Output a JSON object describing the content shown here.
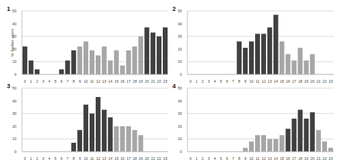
{
  "chart_data": [
    {
      "type": "bar",
      "title": "1",
      "y_label": "% Twitter users",
      "categories": [
        "0",
        "1",
        "2",
        "3",
        "4",
        "5",
        "6",
        "7",
        "8",
        "9",
        "10",
        "11",
        "12",
        "13",
        "14",
        "15",
        "16",
        "17",
        "18",
        "19",
        "20",
        "21",
        "22",
        "23"
      ],
      "values": [
        22,
        11,
        4,
        0,
        0,
        0,
        4,
        11,
        19,
        22,
        26,
        19,
        15,
        22,
        11,
        19,
        7,
        19,
        22,
        30,
        37,
        33,
        30,
        37
      ],
      "colors": [
        "#404040",
        "#404040",
        "#404040",
        "#404040",
        "#404040",
        "#404040",
        "#404040",
        "#404040",
        "#404040",
        "#a6a6a6",
        "#a6a6a6",
        "#a6a6a6",
        "#a6a6a6",
        "#a6a6a6",
        "#a6a6a6",
        "#a6a6a6",
        "#a6a6a6",
        "#a6a6a6",
        "#a6a6a6",
        "#a6a6a6",
        "#404040",
        "#404040",
        "#404040",
        "#404040"
      ],
      "ylim": [
        0,
        50
      ],
      "yticks": [
        0,
        10,
        20,
        30,
        40,
        50
      ],
      "grid": true
    },
    {
      "type": "bar",
      "title": "2",
      "categories": [
        "0",
        "1",
        "2",
        "3",
        "4",
        "5",
        "6",
        "7",
        "8",
        "9",
        "10",
        "11",
        "12",
        "13",
        "14",
        "15",
        "16",
        "17",
        "18",
        "19",
        "20",
        "21",
        "22",
        "23"
      ],
      "values": [
        0,
        0,
        0,
        0,
        0,
        0,
        0,
        0,
        26,
        21,
        26,
        32,
        32,
        37,
        47,
        26,
        16,
        11,
        21,
        11,
        16,
        0,
        0,
        0
      ],
      "colors": [
        "#404040",
        "#404040",
        "#404040",
        "#404040",
        "#404040",
        "#404040",
        "#404040",
        "#404040",
        "#404040",
        "#404040",
        "#404040",
        "#404040",
        "#404040",
        "#404040",
        "#404040",
        "#a6a6a6",
        "#a6a6a6",
        "#a6a6a6",
        "#a6a6a6",
        "#a6a6a6",
        "#a6a6a6",
        "#404040",
        "#404040",
        "#404040"
      ],
      "ylim": [
        0,
        50
      ],
      "yticks": [
        0,
        10,
        20,
        30,
        40,
        50
      ],
      "grid": true
    },
    {
      "type": "bar",
      "title": "3",
      "categories": [
        "0",
        "1",
        "2",
        "3",
        "4",
        "5",
        "6",
        "7",
        "8",
        "9",
        "10",
        "11",
        "12",
        "13",
        "14",
        "15",
        "16",
        "17",
        "18",
        "19",
        "20",
        "21",
        "22",
        "23"
      ],
      "values": [
        0,
        0,
        0,
        0,
        0,
        0,
        0,
        0,
        7,
        17,
        37,
        30,
        43,
        33,
        27,
        20,
        20,
        20,
        17,
        13,
        0,
        0,
        0,
        0
      ],
      "colors": [
        "#404040",
        "#404040",
        "#404040",
        "#404040",
        "#404040",
        "#404040",
        "#404040",
        "#404040",
        "#404040",
        "#404040",
        "#404040",
        "#404040",
        "#404040",
        "#404040",
        "#404040",
        "#a6a6a6",
        "#a6a6a6",
        "#a6a6a6",
        "#a6a6a6",
        "#a6a6a6",
        "#404040",
        "#404040",
        "#404040",
        "#404040"
      ],
      "ylim": [
        0,
        50
      ],
      "yticks": [
        0,
        10,
        20,
        30,
        40,
        50
      ],
      "grid": true
    },
    {
      "type": "bar",
      "title": "4",
      "categories": [
        "0",
        "1",
        "2",
        "3",
        "4",
        "5",
        "6",
        "7",
        "8",
        "9",
        "10",
        "11",
        "12",
        "13",
        "14",
        "15",
        "16",
        "17",
        "18",
        "19",
        "20",
        "21",
        "22",
        "23"
      ],
      "values": [
        0,
        0,
        0,
        0,
        0,
        0,
        0,
        0,
        0,
        3,
        8,
        13,
        13,
        10,
        10,
        13,
        18,
        26,
        33,
        26,
        31,
        17,
        8,
        3
      ],
      "colors": [
        "#a6a6a6",
        "#a6a6a6",
        "#a6a6a6",
        "#a6a6a6",
        "#a6a6a6",
        "#a6a6a6",
        "#a6a6a6",
        "#a6a6a6",
        "#a6a6a6",
        "#a6a6a6",
        "#a6a6a6",
        "#a6a6a6",
        "#a6a6a6",
        "#a6a6a6",
        "#a6a6a6",
        "#a6a6a6",
        "#404040",
        "#404040",
        "#404040",
        "#404040",
        "#404040",
        "#a6a6a6",
        "#a6a6a6",
        "#a6a6a6"
      ],
      "ylim": [
        0,
        50
      ],
      "yticks": [
        0,
        10,
        20,
        30,
        40,
        50
      ],
      "grid": true
    }
  ]
}
